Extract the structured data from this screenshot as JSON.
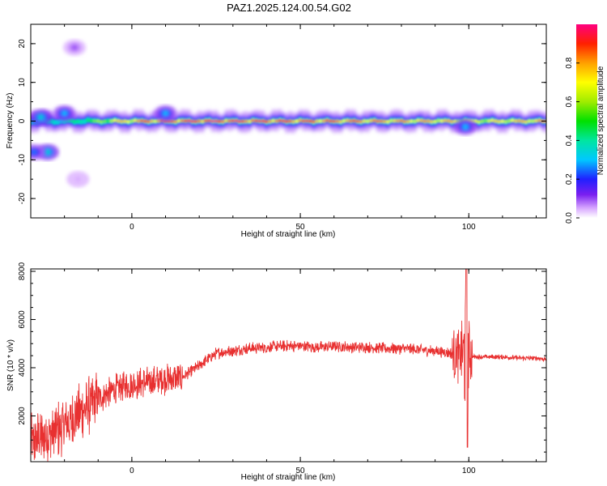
{
  "title": "PAZ1.2025.124.00.54.G02",
  "colors": {
    "signal": "#e83030",
    "frame": "#000000"
  },
  "chart_data": [
    {
      "type": "heatmap",
      "xlabel": "Height of straight line (km)",
      "ylabel": "Frequency (Hz)",
      "xlim": [
        -30,
        123
      ],
      "ylim": [
        -25,
        25
      ],
      "xticks": [
        0,
        50,
        100
      ],
      "xtick_labels": [
        "0",
        "50",
        "100"
      ],
      "yticks": [
        -20,
        -10,
        0,
        10,
        20
      ],
      "ytick_labels": [
        "-20",
        "-10",
        "0",
        "10",
        "20"
      ],
      "colorbar": {
        "label": "Normalized spectral amplitude",
        "range": [
          0,
          1
        ],
        "ticks": [
          0.0,
          0.2,
          0.4,
          0.6,
          0.8
        ],
        "tick_labels": [
          "0.0",
          "0.2",
          "0.4",
          "0.6",
          "0.8"
        ],
        "colormap": "rainbow"
      },
      "ridge": {
        "frequency_hz": 0,
        "amplitude_profile": [
          {
            "x": -30,
            "amp": 0.3
          },
          {
            "x": -15,
            "amp": 0.45
          },
          {
            "x": -5,
            "amp": 0.75
          },
          {
            "x": 5,
            "amp": 0.9
          },
          {
            "x": 22,
            "amp": 1.0
          },
          {
            "x": 60,
            "amp": 0.9
          },
          {
            "x": 95,
            "amp": 0.8
          },
          {
            "x": 100,
            "amp": 0.7
          },
          {
            "x": 123,
            "amp": 0.85
          }
        ]
      },
      "features": [
        {
          "x": -27,
          "freq": 1,
          "amp": 0.35
        },
        {
          "x": -20,
          "freq": 2,
          "amp": 0.3
        },
        {
          "x": -25,
          "freq": -8,
          "amp": 0.35
        },
        {
          "x": -29,
          "freq": -8,
          "amp": 0.25
        },
        {
          "x": -17,
          "freq": 19,
          "amp": 0.1
        },
        {
          "x": -16,
          "freq": -15,
          "amp": 0.05
        },
        {
          "x": 10,
          "freq": 2,
          "amp": 0.3
        },
        {
          "x": 99,
          "freq": -1.5,
          "amp": 0.3
        }
      ]
    },
    {
      "type": "line",
      "xlabel": "Height of straight line (km)",
      "ylabel": "SNR (10 * v/v)",
      "xlim": [
        -30,
        123
      ],
      "ylim": [
        100,
        8100
      ],
      "xticks": [
        0,
        50,
        100
      ],
      "xtick_labels": [
        "0",
        "50",
        "100"
      ],
      "yticks": [
        2000,
        4000,
        6000,
        8000
      ],
      "ytick_labels": [
        "2000",
        "4000",
        "6000",
        "8000"
      ],
      "series": [
        {
          "x": [
            -30,
            -25,
            -20,
            -15,
            -10,
            -5,
            0,
            5,
            10,
            15,
            20,
            25,
            30,
            35,
            40,
            45,
            50,
            55,
            60,
            65,
            70,
            75,
            80,
            85,
            90,
            95,
            97,
            99,
            100,
            102,
            105,
            110,
            115,
            120,
            123
          ],
          "y": [
            900,
            1200,
            1600,
            2200,
            2700,
            3100,
            3300,
            3400,
            3500,
            3600,
            4100,
            4600,
            4700,
            4800,
            4850,
            4900,
            4900,
            4850,
            4900,
            4850,
            4850,
            4800,
            4800,
            4750,
            4700,
            4600,
            4500,
            4700,
            4500,
            4450,
            4450,
            4450,
            4400,
            4400,
            4350
          ]
        }
      ]
    }
  ]
}
